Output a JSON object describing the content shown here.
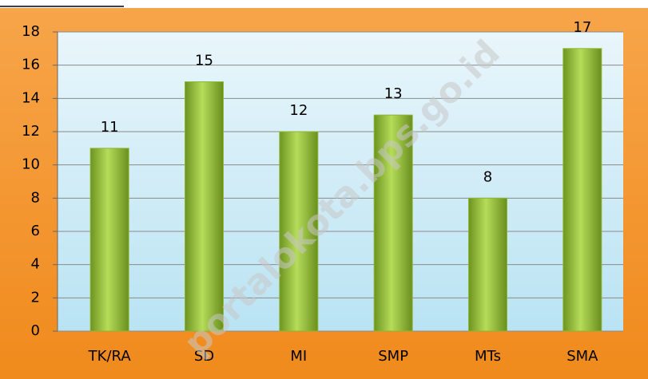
{
  "chart_data": {
    "type": "bar",
    "categories": [
      "TK/RA",
      "SD",
      "MI",
      "SMP",
      "MTs",
      "SMA"
    ],
    "values": [
      11,
      15,
      12,
      13,
      8,
      17
    ],
    "color": "#8db632",
    "ylim": [
      0,
      18
    ],
    "yticks": [
      0,
      2,
      4,
      6,
      8,
      10,
      12,
      14,
      16,
      18
    ],
    "grid": true,
    "watermark": "portalokota.bps.go.id"
  }
}
